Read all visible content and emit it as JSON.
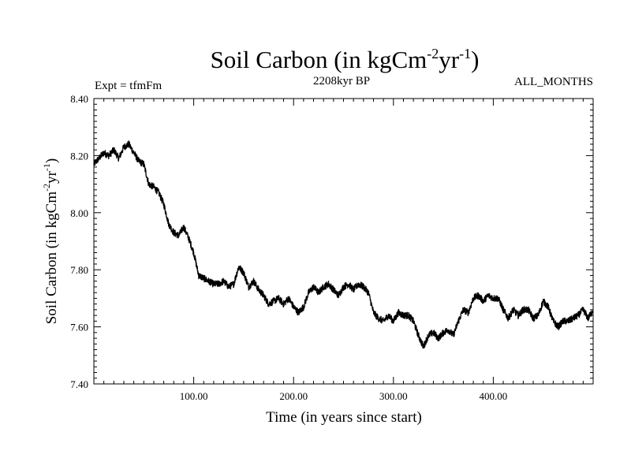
{
  "chart_data": {
    "type": "line",
    "title": "Soil Carbon (in kgCm",
    "title_sup1": "-2",
    "title_mid": "yr",
    "title_sup2": "-1",
    "title_end": ")",
    "subtitle_left": "Expt = tfmFm",
    "subtitle_center": "2208kyr BP",
    "subtitle_right": "ALL_MONTHS",
    "xlabel": "Time (in years since start)",
    "ylabel": "Soil Carbon (in kgCm",
    "ylabel_sup1": "-2",
    "ylabel_mid": "yr",
    "ylabel_sup2": "-1",
    "ylabel_end": ")",
    "xlim": [
      0,
      500
    ],
    "ylim": [
      7.4,
      8.4
    ],
    "xticks": [
      100,
      200,
      300,
      400
    ],
    "xtick_labels": [
      "100.00",
      "200.00",
      "300.00",
      "400.00"
    ],
    "yticks": [
      7.4,
      7.6,
      7.8,
      8.0,
      8.2,
      8.4
    ],
    "ytick_labels": [
      "7.40",
      "7.60",
      "7.80",
      "8.00",
      "8.20",
      "8.40"
    ],
    "line_color": "#000000",
    "series": [
      {
        "name": "Soil Carbon",
        "x": [
          0,
          5,
          10,
          15,
          20,
          25,
          30,
          35,
          40,
          45,
          50,
          55,
          60,
          65,
          70,
          75,
          80,
          85,
          90,
          95,
          100,
          105,
          110,
          115,
          120,
          125,
          130,
          135,
          140,
          145,
          150,
          155,
          160,
          165,
          170,
          175,
          180,
          185,
          190,
          195,
          200,
          205,
          210,
          215,
          220,
          225,
          230,
          235,
          240,
          245,
          250,
          255,
          260,
          265,
          270,
          275,
          280,
          285,
          290,
          295,
          300,
          305,
          310,
          315,
          320,
          325,
          330,
          335,
          340,
          345,
          350,
          355,
          360,
          365,
          370,
          375,
          380,
          385,
          390,
          395,
          400,
          405,
          410,
          415,
          420,
          425,
          430,
          435,
          440,
          445,
          450,
          455,
          460,
          465,
          470,
          475,
          480,
          485,
          490,
          495,
          500
        ],
        "y": [
          8.17,
          8.19,
          8.21,
          8.2,
          8.22,
          8.19,
          8.23,
          8.24,
          8.21,
          8.18,
          8.17,
          8.1,
          8.09,
          8.07,
          8.03,
          7.96,
          7.93,
          7.92,
          7.95,
          7.91,
          7.86,
          7.78,
          7.77,
          7.76,
          7.75,
          7.75,
          7.76,
          7.74,
          7.75,
          7.81,
          7.79,
          7.74,
          7.76,
          7.73,
          7.71,
          7.68,
          7.69,
          7.7,
          7.68,
          7.7,
          7.67,
          7.65,
          7.67,
          7.72,
          7.74,
          7.72,
          7.74,
          7.75,
          7.73,
          7.71,
          7.74,
          7.75,
          7.73,
          7.75,
          7.74,
          7.72,
          7.65,
          7.63,
          7.62,
          7.64,
          7.62,
          7.65,
          7.64,
          7.64,
          7.62,
          7.57,
          7.53,
          7.57,
          7.58,
          7.56,
          7.58,
          7.59,
          7.57,
          7.62,
          7.66,
          7.65,
          7.7,
          7.71,
          7.69,
          7.71,
          7.7,
          7.7,
          7.66,
          7.63,
          7.66,
          7.64,
          7.66,
          7.66,
          7.63,
          7.64,
          7.69,
          7.67,
          7.62,
          7.6,
          7.62,
          7.62,
          7.63,
          7.64,
          7.66,
          7.63,
          7.66
        ],
        "noise_amplitude": 0.012
      }
    ]
  }
}
